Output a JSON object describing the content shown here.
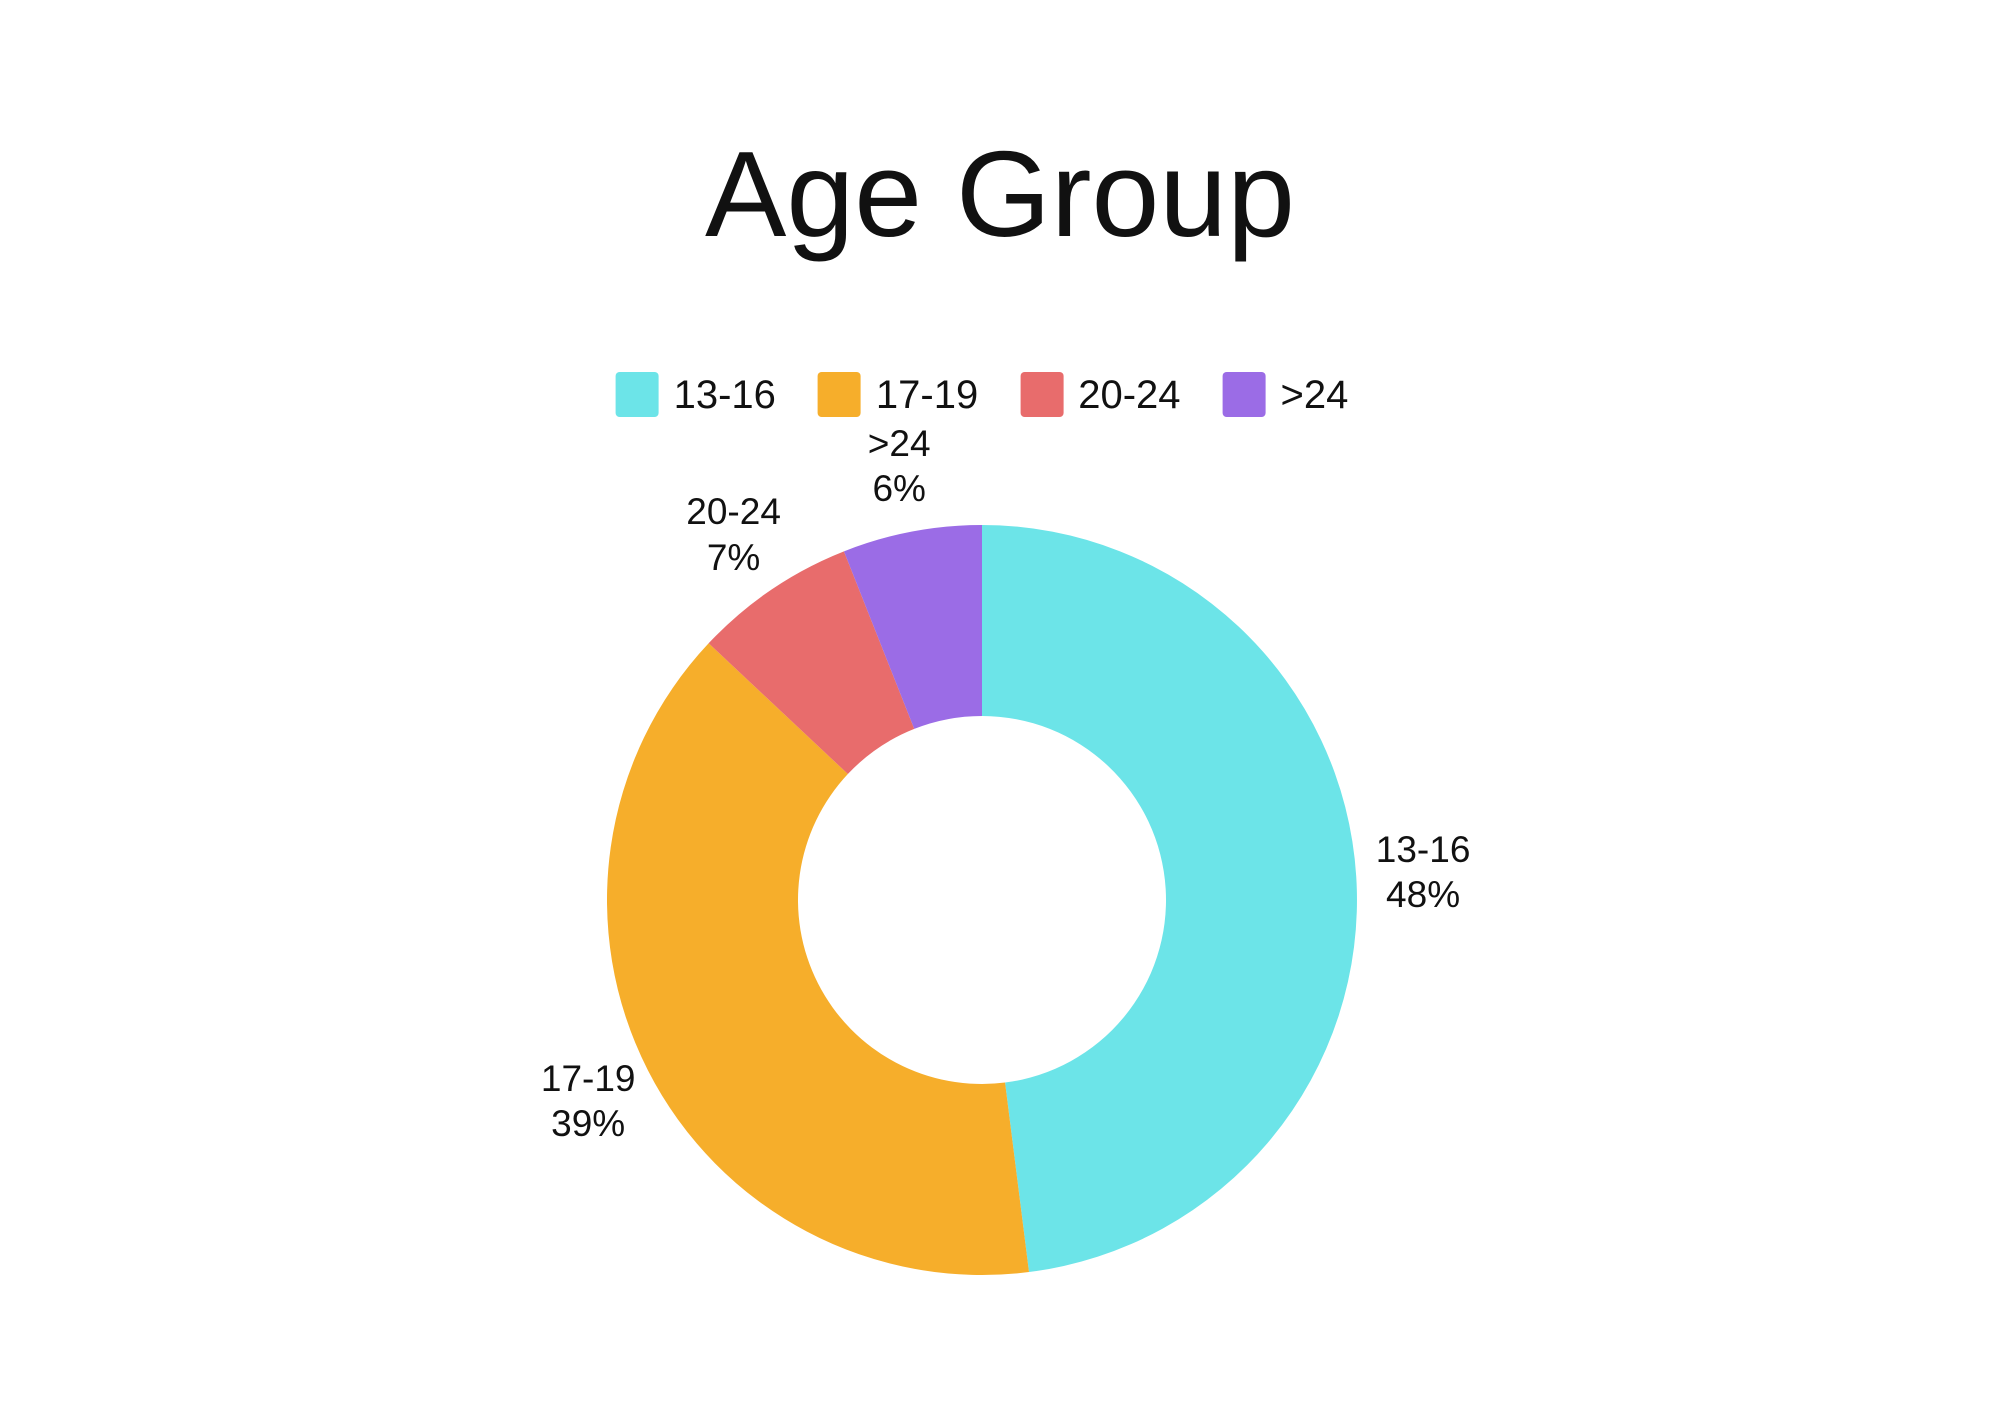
{
  "title": "Age Group",
  "legend": {
    "items": [
      {
        "label": "13-16",
        "color": "#6CE4E8"
      },
      {
        "label": "17-19",
        "color": "#F6AE2B"
      },
      {
        "label": "20-24",
        "color": "#E86C6C"
      },
      {
        "label": ">24",
        "color": "#9B6CE6"
      }
    ]
  },
  "chart_data": {
    "type": "pie",
    "subtype": "donut",
    "title": "Age Group",
    "categories": [
      "13-16",
      "17-19",
      "20-24",
      ">24"
    ],
    "values": [
      48,
      39,
      7,
      6
    ],
    "value_labels": [
      "48%",
      "39%",
      "7%",
      "6%"
    ],
    "colors": [
      "#6CE4E8",
      "#F6AE2B",
      "#E86C6C",
      "#9B6CE6"
    ],
    "unit": "%",
    "start_angle_deg": 0,
    "direction": "clockwise",
    "inner_radius_ratio": 0.49,
    "legend_position": "top",
    "slice_label_style": "category and percent outside slice"
  }
}
